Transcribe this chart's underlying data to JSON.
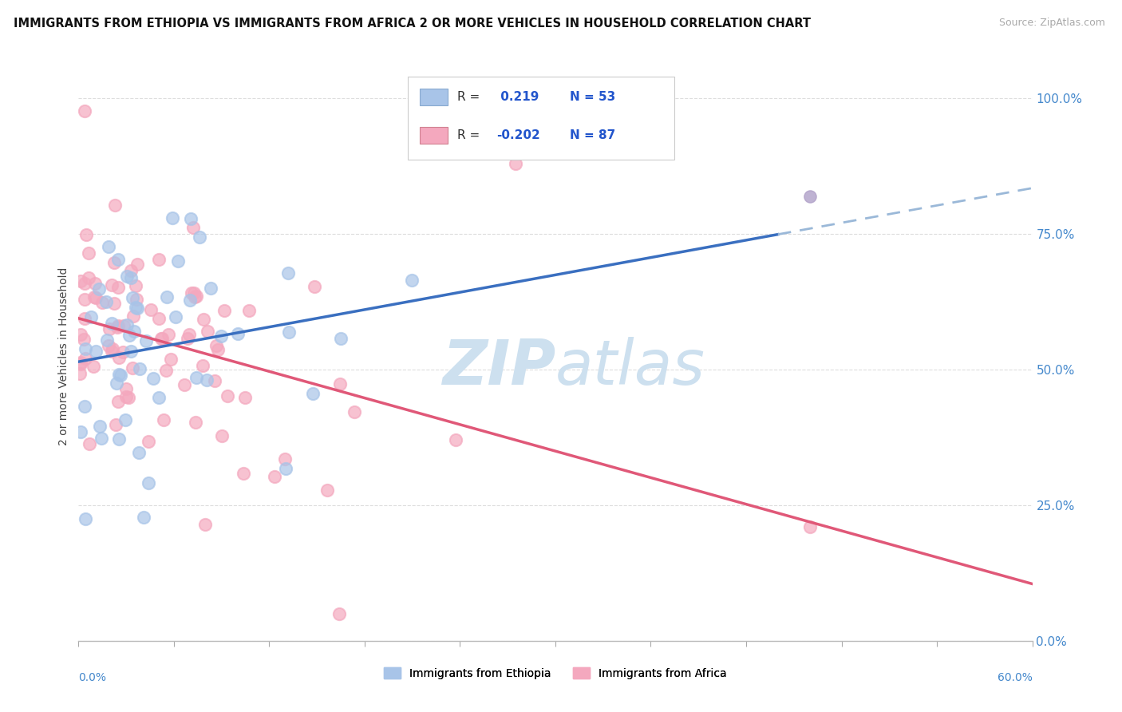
{
  "title": "IMMIGRANTS FROM ETHIOPIA VS IMMIGRANTS FROM AFRICA 2 OR MORE VEHICLES IN HOUSEHOLD CORRELATION CHART",
  "source": "Source: ZipAtlas.com",
  "ylabel": "2 or more Vehicles in Household",
  "yticks": [
    0.0,
    0.25,
    0.5,
    0.75,
    1.0
  ],
  "ytick_labels": [
    "0.0%",
    "25.0%",
    "50.0%",
    "75.0%",
    "100.0%"
  ],
  "xlim": [
    0.0,
    0.6
  ],
  "ylim": [
    0.0,
    1.05
  ],
  "ethiopia_R": 0.219,
  "ethiopia_N": 53,
  "africa_R": -0.202,
  "africa_N": 87,
  "blue_dot_color": "#a8c4e8",
  "pink_dot_color": "#f4a8be",
  "purple_dot_color": "#b0a0c8",
  "blue_line_color": "#3a6fc0",
  "blue_dash_color": "#9ab8d8",
  "pink_line_color": "#e05878",
  "legend_R_color": "#2255cc",
  "watermark_color": "#cde0ef",
  "background_color": "#ffffff",
  "grid_color": "#dddddd",
  "eth_seed": 7,
  "afr_seed": 11
}
